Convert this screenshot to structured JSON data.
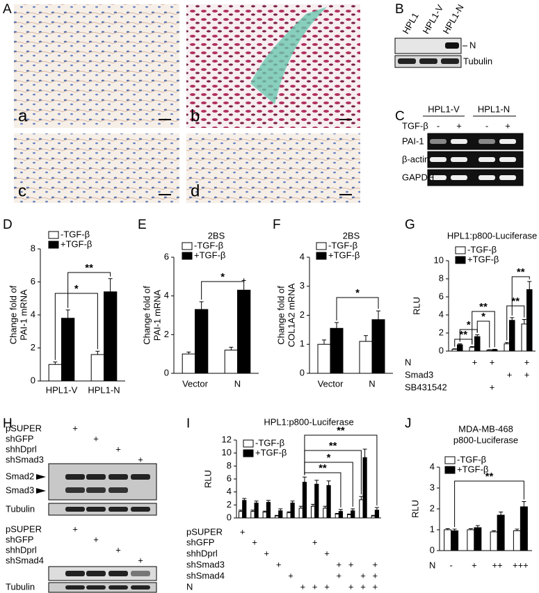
{
  "panel_labels": [
    "A",
    "B",
    "C",
    "D",
    "E",
    "F",
    "G",
    "H",
    "I",
    "J"
  ],
  "micrograph_labels": [
    "a",
    "b",
    "c",
    "d"
  ],
  "blot_B": {
    "lanes": [
      "HPL1",
      "HPL1-V",
      "HPL1-N"
    ],
    "bands": [
      "N",
      "Tubulin"
    ]
  },
  "blot_C": {
    "groups": [
      "HPL1-V",
      "HPL1-N"
    ],
    "treatment": "TGF-β",
    "treatment_marks": [
      "-",
      "+",
      "-",
      "+"
    ],
    "bands": [
      "PAI-1",
      "β-actin",
      "GAPDH"
    ]
  },
  "blot_H": {
    "top": {
      "rows": [
        {
          "label": "pSUPER",
          "marks": [
            "+",
            null,
            null,
            null
          ]
        },
        {
          "label": "shGFP",
          "marks": [
            null,
            "+",
            null,
            null
          ]
        },
        {
          "label": "shhDprl",
          "marks": [
            null,
            null,
            "+",
            null
          ]
        },
        {
          "label": "shSmad3",
          "marks": [
            null,
            null,
            null,
            "+"
          ]
        }
      ],
      "bands": [
        "Smad2",
        "Smad3",
        "Tubulin"
      ]
    },
    "bottom": {
      "rows": [
        {
          "label": "pSUPER",
          "marks": [
            "+",
            null,
            null,
            null
          ]
        },
        {
          "label": "shGFP",
          "marks": [
            null,
            "+",
            null,
            null
          ]
        },
        {
          "label": "shhDprl",
          "marks": [
            null,
            null,
            "+",
            null
          ]
        },
        {
          "label": "shSmad4",
          "marks": [
            null,
            null,
            null,
            "+"
          ]
        }
      ],
      "bands": [
        "Tubulin"
      ]
    }
  },
  "chart_data": [
    {
      "type": "bar",
      "y_label": [
        "Change fold of",
        "PAI-1 mRNA"
      ],
      "categories": [
        "HPL1-V",
        "HPL1-N"
      ],
      "series": [
        {
          "name": "-TGF-β",
          "color": "#ffffff",
          "values": [
            1.0,
            1.6
          ],
          "errors": [
            0.15,
            0.2
          ]
        },
        {
          "name": "+TGF-β",
          "color": "#000000",
          "values": [
            3.8,
            5.4
          ],
          "errors": [
            0.5,
            0.8
          ]
        }
      ],
      "ylim": [
        0,
        8
      ],
      "yticks": [
        0,
        2,
        4,
        6,
        8
      ],
      "annotations": [
        "*",
        "**"
      ]
    },
    {
      "type": "bar",
      "title": "2BS",
      "y_label": [
        "Change fold of",
        "PAI-1 mRNA"
      ],
      "categories": [
        "Vector",
        "N"
      ],
      "series": [
        {
          "name": "-TGF-β",
          "color": "#ffffff",
          "values": [
            1.0,
            1.2
          ],
          "errors": [
            0.1,
            0.15
          ]
        },
        {
          "name": "+TGF-β",
          "color": "#000000",
          "values": [
            3.3,
            4.3
          ],
          "errors": [
            0.4,
            0.5
          ]
        }
      ],
      "ylim": [
        0,
        6
      ],
      "yticks": [
        0,
        2,
        4,
        6
      ],
      "annotations": [
        "*"
      ]
    },
    {
      "type": "bar",
      "title": "2BS",
      "y_label": [
        "Change fold of",
        "COL1A2 mRNA"
      ],
      "categories": [
        "Vector",
        "N"
      ],
      "series": [
        {
          "name": "-TGF-β",
          "color": "#ffffff",
          "values": [
            1.0,
            1.1
          ],
          "errors": [
            0.15,
            0.2
          ]
        },
        {
          "name": "+TGF-β",
          "color": "#000000",
          "values": [
            1.55,
            1.85
          ],
          "errors": [
            0.2,
            0.3
          ]
        }
      ],
      "ylim": [
        0,
        4
      ],
      "yticks": [
        0,
        1,
        2,
        3,
        4
      ],
      "annotations": [
        "*"
      ]
    },
    {
      "type": "bar",
      "title": "HPL1:p800-Luciferase",
      "y_label": [
        "RLU"
      ],
      "categories": [
        null,
        null,
        null,
        null,
        null
      ],
      "series": [
        {
          "name": "-TGF-β",
          "color": "#ffffff",
          "values": [
            0.2,
            0.4,
            0.1,
            0.8,
            3.0
          ],
          "errors": [
            0.05,
            0.1,
            0.05,
            0.15,
            0.5
          ]
        },
        {
          "name": "+TGF-β",
          "color": "#000000",
          "values": [
            0.7,
            1.6,
            0.15,
            3.4,
            6.8
          ],
          "errors": [
            0.1,
            0.2,
            0.05,
            0.3,
            0.9
          ]
        }
      ],
      "rows": [
        {
          "label": "N",
          "marks": [
            null,
            "+",
            "+",
            null,
            "+"
          ]
        },
        {
          "label": "Smad3",
          "marks": [
            null,
            null,
            null,
            "+",
            "+"
          ]
        },
        {
          "label": "SB431542",
          "marks": [
            null,
            null,
            "+",
            null,
            null
          ]
        }
      ],
      "ylim": [
        0,
        10
      ],
      "yticks": [
        0,
        2,
        4,
        6,
        8,
        10
      ],
      "annotations": [
        "**",
        "*",
        "*",
        "**",
        "**",
        "**"
      ]
    },
    {
      "type": "bar",
      "title": "HPL1:p800-Luciferase",
      "y_label": [
        "RLU"
      ],
      "categories": [
        null,
        null,
        null,
        null,
        null,
        null,
        null,
        null,
        null,
        null,
        null,
        null
      ],
      "series": [
        {
          "name": "-TGF-β",
          "color": "#ffffff",
          "values": [
            1.0,
            1.0,
            0.9,
            0.3,
            0.8,
            1.5,
            1.8,
            1.5,
            0.6,
            0.5,
            2.8,
            0.3
          ],
          "errors": [
            0.2,
            0.2,
            0.15,
            0.1,
            0.15,
            0.3,
            0.3,
            0.3,
            0.1,
            0.1,
            0.5,
            0.1
          ]
        },
        {
          "name": "+TGF-β",
          "color": "#000000",
          "values": [
            2.7,
            2.3,
            2.4,
            1.1,
            2.3,
            5.5,
            5.2,
            5.0,
            1.0,
            1.1,
            9.3,
            1.2
          ],
          "errors": [
            0.3,
            0.3,
            0.3,
            0.3,
            0.3,
            0.8,
            0.6,
            0.7,
            0.3,
            0.3,
            1.3,
            0.4
          ]
        }
      ],
      "rows": [
        {
          "label": "pSUPER",
          "marks": [
            "+",
            null,
            null,
            null,
            null,
            null,
            null,
            null,
            null,
            null,
            null,
            null
          ]
        },
        {
          "label": "shGFP",
          "marks": [
            null,
            "+",
            null,
            null,
            null,
            null,
            "+",
            null,
            null,
            null,
            null,
            null
          ]
        },
        {
          "label": "shhDprl",
          "marks": [
            null,
            null,
            "+",
            null,
            null,
            null,
            null,
            "+",
            null,
            null,
            null,
            null
          ]
        },
        {
          "label": "shSmad3",
          "marks": [
            null,
            null,
            null,
            "+",
            null,
            null,
            null,
            null,
            "+",
            "+",
            null,
            "+"
          ]
        },
        {
          "label": "shSmad4",
          "marks": [
            null,
            null,
            null,
            null,
            "+",
            null,
            null,
            null,
            "+",
            null,
            "+",
            "+"
          ]
        },
        {
          "label": "N",
          "marks": [
            null,
            null,
            null,
            null,
            null,
            "+",
            "+",
            "+",
            null,
            "+",
            "+",
            "+"
          ]
        }
      ],
      "ylim": [
        0,
        12
      ],
      "yticks": [
        0,
        2,
        4,
        6,
        8,
        10,
        12
      ],
      "annotations": [
        "**",
        "**",
        "*",
        "**"
      ]
    },
    {
      "type": "bar",
      "title": [
        "MDA-MB-468",
        "p800-Luciferase"
      ],
      "y_label": [
        "RLU"
      ],
      "category_label": "N",
      "categories": [
        "-",
        "+",
        "++",
        "+++"
      ],
      "series": [
        {
          "name": "-TGF-β",
          "color": "#ffffff",
          "values": [
            1.0,
            1.0,
            0.9,
            0.95
          ],
          "errors": [
            0.05,
            0.05,
            0.05,
            0.08
          ]
        },
        {
          "name": "+TGF-β",
          "color": "#000000",
          "values": [
            0.95,
            1.1,
            1.7,
            2.1
          ],
          "errors": [
            0.08,
            0.1,
            0.15,
            0.25
          ]
        }
      ],
      "ylim": [
        0,
        4
      ],
      "yticks": [
        0,
        1,
        2,
        3,
        4
      ],
      "annotations": [
        "**"
      ]
    }
  ]
}
